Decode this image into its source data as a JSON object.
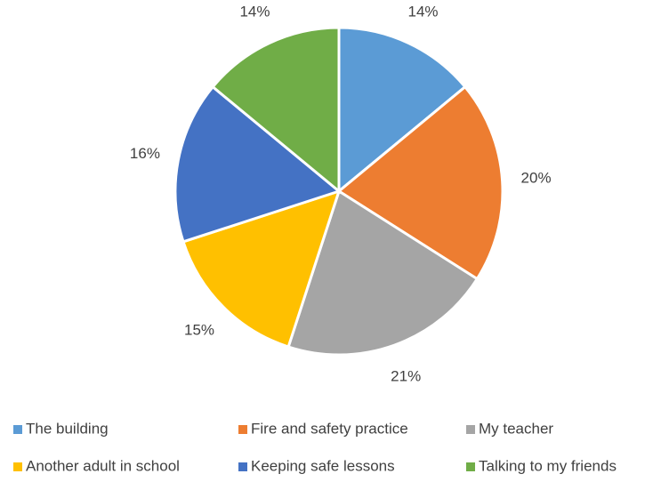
{
  "chart_data": {
    "type": "pie",
    "categories": [
      "The building",
      "Fire and safety practice",
      "My teacher",
      "Another adult in school",
      "Keeping safe lessons",
      "Talking to my friends"
    ],
    "values": [
      14,
      20,
      21,
      15,
      16,
      14
    ],
    "value_labels": [
      "14%",
      "20%",
      "21%",
      "15%",
      "16%",
      "14%"
    ],
    "colors": [
      "#5b9bd5",
      "#ed7d31",
      "#a5a5a5",
      "#ffc000",
      "#4472c4",
      "#70ad47"
    ],
    "legend": "bottom"
  }
}
